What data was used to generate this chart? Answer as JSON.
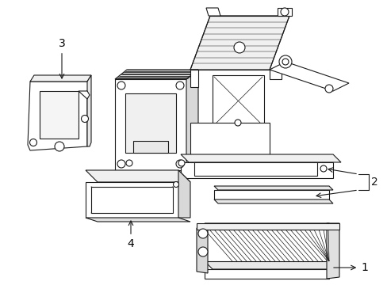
{
  "bg": "#ffffff",
  "lc": "#1a1a1a",
  "lw": 0.8,
  "figsize": [
    4.89,
    3.6
  ],
  "dpi": 100,
  "labels": {
    "1": "1",
    "2": "2",
    "3": "3",
    "4": "4"
  }
}
